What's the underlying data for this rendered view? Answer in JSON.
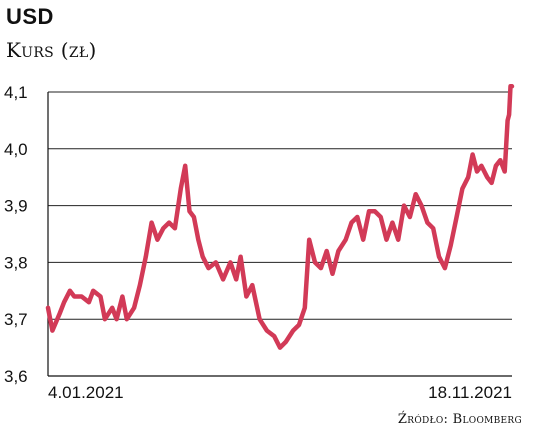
{
  "header": {
    "title": "USD",
    "subtitle": "Kurs (zł)"
  },
  "footer": {
    "source": "Źródło: Bloomberg"
  },
  "colors": {
    "line": "#d23a57",
    "grid": "#222222",
    "axis": "#111111"
  },
  "chart_data": {
    "type": "line",
    "title": "USD",
    "ylabel": "Kurs (zł)",
    "xlabel": "",
    "ylim": [
      3.6,
      4.1
    ],
    "yticks": [
      3.6,
      3.7,
      3.8,
      3.9,
      4.0,
      4.1
    ],
    "ytick_labels": [
      "3,6",
      "3,7",
      "3,8",
      "3,9",
      "4,0",
      "4,1"
    ],
    "grid": true,
    "x_range": [
      "2021-01-04",
      "2021-11-18"
    ],
    "xtick_labels": [
      {
        "date": "2021-01-04",
        "label": "4.01.2021"
      },
      {
        "date": "2021-11-18",
        "label": "18.11.2021"
      }
    ],
    "series": [
      {
        "values": [
          [
            "2021-01-04",
            3.72
          ],
          [
            "2021-01-07",
            3.68
          ],
          [
            "2021-01-12",
            3.71
          ],
          [
            "2021-01-15",
            3.73
          ],
          [
            "2021-01-19",
            3.75
          ],
          [
            "2021-01-22",
            3.74
          ],
          [
            "2021-01-27",
            3.74
          ],
          [
            "2021-02-01",
            3.73
          ],
          [
            "2021-02-04",
            3.75
          ],
          [
            "2021-02-09",
            3.74
          ],
          [
            "2021-02-12",
            3.7
          ],
          [
            "2021-02-17",
            3.72
          ],
          [
            "2021-02-20",
            3.7
          ],
          [
            "2021-02-24",
            3.74
          ],
          [
            "2021-02-27",
            3.7
          ],
          [
            "2021-03-04",
            3.72
          ],
          [
            "2021-03-08",
            3.76
          ],
          [
            "2021-03-12",
            3.81
          ],
          [
            "2021-03-16",
            3.87
          ],
          [
            "2021-03-20",
            3.84
          ],
          [
            "2021-03-24",
            3.86
          ],
          [
            "2021-03-28",
            3.87
          ],
          [
            "2021-04-01",
            3.86
          ],
          [
            "2021-04-05",
            3.93
          ],
          [
            "2021-04-08",
            3.97
          ],
          [
            "2021-04-11",
            3.89
          ],
          [
            "2021-04-14",
            3.88
          ],
          [
            "2021-04-17",
            3.84
          ],
          [
            "2021-04-20",
            3.81
          ],
          [
            "2021-04-24",
            3.79
          ],
          [
            "2021-04-29",
            3.8
          ],
          [
            "2021-05-04",
            3.77
          ],
          [
            "2021-05-09",
            3.8
          ],
          [
            "2021-05-13",
            3.77
          ],
          [
            "2021-05-16",
            3.81
          ],
          [
            "2021-05-20",
            3.74
          ],
          [
            "2021-05-24",
            3.76
          ],
          [
            "2021-05-29",
            3.7
          ],
          [
            "2021-06-03",
            3.68
          ],
          [
            "2021-06-08",
            3.67
          ],
          [
            "2021-06-12",
            3.65
          ],
          [
            "2021-06-16",
            3.66
          ],
          [
            "2021-06-21",
            3.68
          ],
          [
            "2021-06-25",
            3.69
          ],
          [
            "2021-06-29",
            3.72
          ],
          [
            "2021-07-02",
            3.84
          ],
          [
            "2021-07-06",
            3.8
          ],
          [
            "2021-07-10",
            3.79
          ],
          [
            "2021-07-14",
            3.82
          ],
          [
            "2021-07-18",
            3.78
          ],
          [
            "2021-07-22",
            3.82
          ],
          [
            "2021-07-27",
            3.84
          ],
          [
            "2021-07-31",
            3.87
          ],
          [
            "2021-08-04",
            3.88
          ],
          [
            "2021-08-08",
            3.84
          ],
          [
            "2021-08-12",
            3.89
          ],
          [
            "2021-08-16",
            3.89
          ],
          [
            "2021-08-20",
            3.88
          ],
          [
            "2021-08-24",
            3.84
          ],
          [
            "2021-08-28",
            3.87
          ],
          [
            "2021-09-01",
            3.84
          ],
          [
            "2021-09-05",
            3.9
          ],
          [
            "2021-09-09",
            3.88
          ],
          [
            "2021-09-13",
            3.92
          ],
          [
            "2021-09-17",
            3.9
          ],
          [
            "2021-09-21",
            3.87
          ],
          [
            "2021-09-25",
            3.86
          ],
          [
            "2021-09-29",
            3.81
          ],
          [
            "2021-10-03",
            3.79
          ],
          [
            "2021-10-07",
            3.83
          ],
          [
            "2021-10-11",
            3.88
          ],
          [
            "2021-10-15",
            3.93
          ],
          [
            "2021-10-19",
            3.95
          ],
          [
            "2021-10-22",
            3.99
          ],
          [
            "2021-10-25",
            3.96
          ],
          [
            "2021-10-28",
            3.97
          ],
          [
            "2021-11-01",
            3.95
          ],
          [
            "2021-11-04",
            3.94
          ],
          [
            "2021-11-07",
            3.97
          ],
          [
            "2021-11-10",
            3.98
          ],
          [
            "2021-11-13",
            3.96
          ],
          [
            "2021-11-15",
            4.05
          ],
          [
            "2021-11-16",
            4.06
          ],
          [
            "2021-11-17",
            4.11
          ],
          [
            "2021-11-18",
            4.11
          ]
        ]
      }
    ]
  }
}
